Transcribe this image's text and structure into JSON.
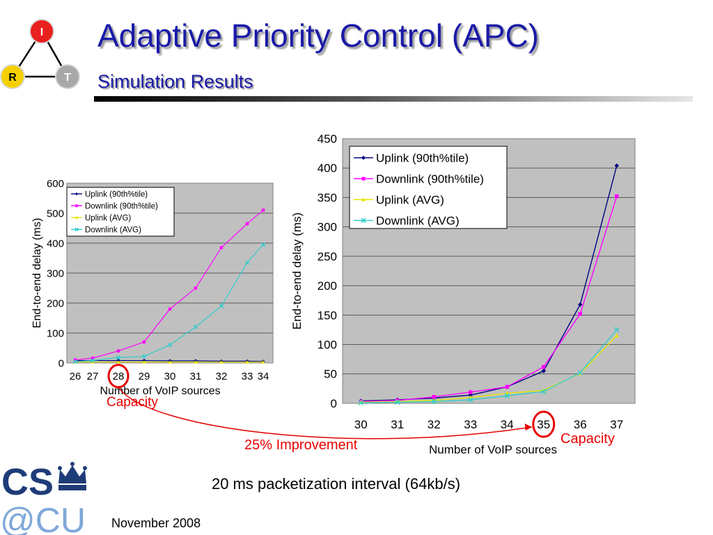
{
  "slide": {
    "title": "Adaptive Priority Control (APC)",
    "subtitle": "Simulation Results",
    "caption": "20 ms packetization interval (64kb/s)",
    "date": "November 2008",
    "improvement_label": "25% Improvement",
    "logo_irt": {
      "letters": [
        "I",
        "R",
        "T"
      ]
    },
    "logo_cu": {
      "line1": "CS",
      "line2": "@CU"
    }
  },
  "colors": {
    "title": "#1a1aa8",
    "uplink_90": "#000080",
    "downlink_90": "#ff00ff",
    "uplink_avg": "#e6e600",
    "downlink_avg": "#33cccc",
    "capacity": "#e60000",
    "plot_bg": "#c0c0c0"
  },
  "chart_data": [
    {
      "type": "line",
      "id": "left",
      "ylabel": "End-to-end delay (ms)",
      "xlabel": "Number of VoIP sources",
      "ylim": [
        0,
        600
      ],
      "yticks": [
        0,
        100,
        200,
        300,
        400,
        500,
        600
      ],
      "x": [
        26,
        27,
        28,
        29,
        30,
        31,
        32,
        33,
        34
      ],
      "legend_position": "top-left",
      "capacity_x": 28,
      "capacity_label": "Capacity",
      "series": [
        {
          "name": "Uplink (90th%tile)",
          "key": "uplink_90",
          "marker": "diamond",
          "values": [
            8,
            8,
            8,
            8,
            7,
            7,
            6,
            6,
            5
          ]
        },
        {
          "name": "Downlink (90th%tile)",
          "key": "downlink_90",
          "marker": "square",
          "values": [
            10,
            16,
            40,
            70,
            180,
            250,
            385,
            465,
            510
          ]
        },
        {
          "name": "Uplink (AVG)",
          "key": "uplink_avg",
          "marker": "triangle",
          "values": [
            3,
            3,
            3,
            3,
            3,
            3,
            3,
            3,
            3
          ]
        },
        {
          "name": "Downlink (AVG)",
          "key": "downlink_avg",
          "marker": "x",
          "values": [
            4,
            8,
            18,
            22,
            60,
            120,
            190,
            335,
            395
          ]
        }
      ]
    },
    {
      "type": "line",
      "id": "right",
      "ylabel": "End-to-end delay (ms)",
      "xlabel": "Number of VoIP sources",
      "ylim": [
        0,
        450
      ],
      "yticks": [
        0,
        50,
        100,
        150,
        200,
        250,
        300,
        350,
        400,
        450
      ],
      "x": [
        30,
        31,
        32,
        33,
        34,
        35,
        36,
        37
      ],
      "legend_position": "top-left",
      "capacity_x": 35,
      "capacity_label": "Capacity",
      "series": [
        {
          "name": "Uplink (90th%tile)",
          "key": "uplink_90",
          "marker": "diamond",
          "values": [
            4,
            6,
            9,
            14,
            28,
            55,
            168,
            404
          ]
        },
        {
          "name": "Downlink (90th%tile)",
          "key": "downlink_90",
          "marker": "square",
          "values": [
            3,
            5,
            11,
            19,
            28,
            62,
            152,
            352
          ]
        },
        {
          "name": "Uplink (AVG)",
          "key": "uplink_avg",
          "marker": "triangle",
          "values": [
            2,
            3,
            5,
            10,
            17,
            22,
            51,
            115
          ]
        },
        {
          "name": "Downlink (AVG)",
          "key": "downlink_avg",
          "marker": "x",
          "values": [
            1,
            2,
            3,
            6,
            13,
            20,
            52,
            125
          ]
        }
      ]
    }
  ]
}
